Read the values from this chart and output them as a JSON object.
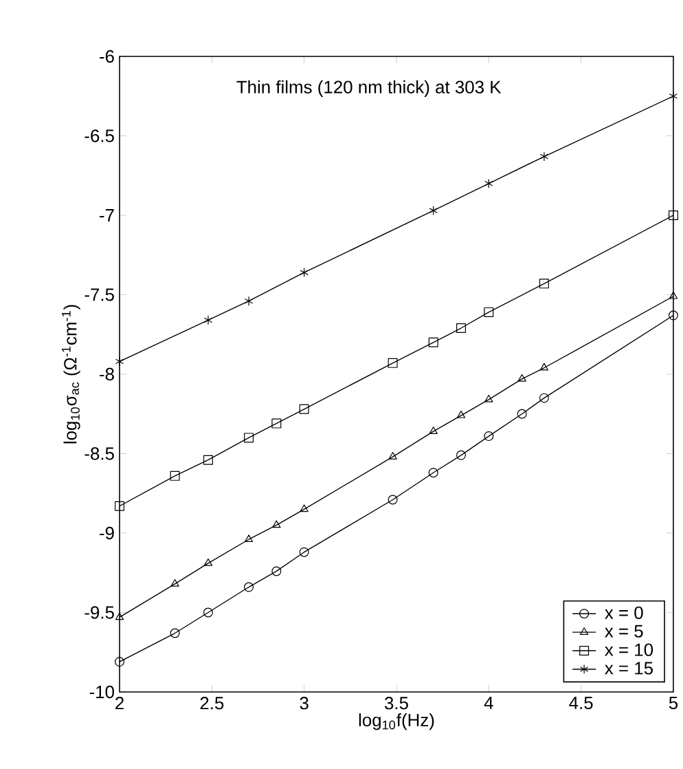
{
  "chart_data": {
    "type": "line",
    "xlabel": "log$_{10}$f(Hz)",
    "ylabel": "log$_{10}$σ$_{ac}$ (Ω$^{-1}$cm$^{-1}$)",
    "annotations": [
      "Thin films (120 nm thick) at 303 K"
    ],
    "xlim": [
      2,
      5
    ],
    "ylim": [
      -10,
      -6
    ],
    "xticks": [
      2,
      2.5,
      3,
      3.5,
      4,
      4.5,
      5
    ],
    "yticks": [
      -10,
      -9.5,
      -9,
      -8.5,
      -8,
      -7.5,
      -7,
      -6.5,
      -6
    ],
    "legend": "bottom right",
    "line_style": "solid",
    "grid": false,
    "series": [
      {
        "name": "x = 0",
        "color": "#000000",
        "marker": "circle",
        "x": [
          2,
          2.3,
          2.48,
          2.7,
          2.85,
          3,
          3.48,
          3.7,
          3.85,
          4,
          4.18,
          4.3,
          5
        ],
        "values": [
          -9.81,
          -9.63,
          -9.5,
          -9.34,
          -9.24,
          -9.12,
          -8.79,
          -8.62,
          -8.51,
          -8.39,
          -8.25,
          -8.15,
          -7.63
        ]
      },
      {
        "name": "x = 5",
        "color": "#000000",
        "marker": "triangle",
        "x": [
          2,
          2.3,
          2.48,
          2.7,
          2.85,
          3,
          3.48,
          3.7,
          3.85,
          4,
          4.18,
          4.3,
          5
        ],
        "values": [
          -9.53,
          -9.32,
          -9.19,
          -9.04,
          -8.95,
          -8.85,
          -8.52,
          -8.36,
          -8.26,
          -8.16,
          -8.03,
          -7.96,
          -7.51
        ]
      },
      {
        "name": "x = 10",
        "color": "#000000",
        "marker": "square",
        "x": [
          2,
          2.3,
          2.48,
          2.7,
          2.85,
          3,
          3.48,
          3.7,
          3.85,
          4,
          4.3,
          5
        ],
        "values": [
          -8.83,
          -8.64,
          -8.54,
          -8.4,
          -8.31,
          -8.22,
          -7.93,
          -7.8,
          -7.71,
          -7.61,
          -7.43,
          -7.0
        ]
      },
      {
        "name": "x = 15",
        "color": "#000000",
        "marker": "cross",
        "x": [
          2,
          2.48,
          2.7,
          3,
          3.7,
          4,
          4.3,
          5
        ],
        "values": [
          -7.92,
          -7.66,
          -7.54,
          -7.36,
          -6.97,
          -6.8,
          -6.63,
          -6.25
        ]
      }
    ]
  }
}
